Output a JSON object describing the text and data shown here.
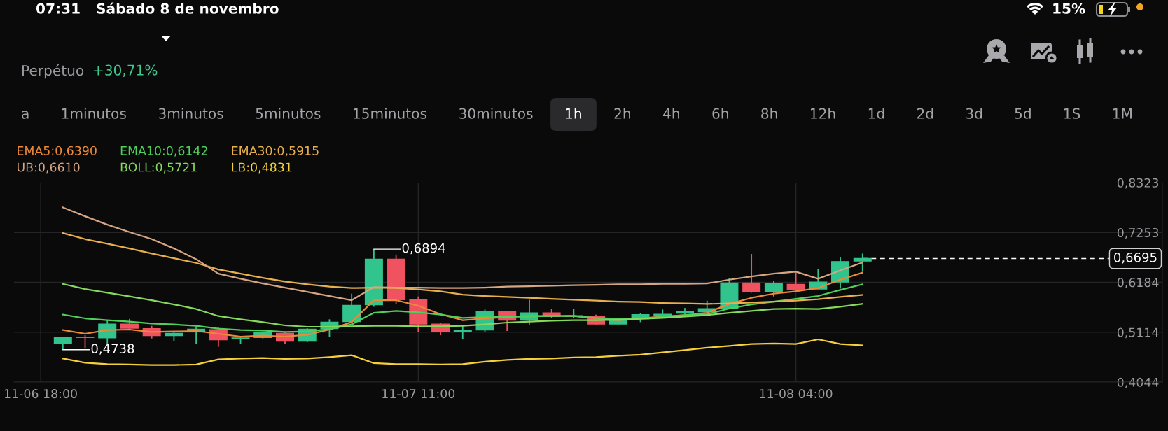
{
  "chart_data": {
    "type": "candlestick",
    "subtitle": "Perpétuo",
    "categories": [
      "11-06 18:00",
      null,
      null,
      null,
      null,
      null,
      null,
      null,
      null,
      null,
      null,
      null,
      null,
      null,
      null,
      null,
      null,
      "11-07 11:00",
      null,
      null,
      null,
      null,
      null,
      null,
      null,
      null,
      null,
      null,
      null,
      null,
      null,
      null,
      null,
      null,
      "11-08 04:00",
      null,
      null,
      null,
      null,
      null,
      null,
      null,
      null,
      null,
      null,
      null,
      null,
      null,
      null,
      null,
      null
    ],
    "ohlc": [
      null,
      [
        0.487,
        0.502,
        0.4738,
        0.5
      ],
      [
        0.501,
        0.505,
        0.476,
        0.5
      ],
      [
        0.499,
        0.537,
        0.487,
        0.529
      ],
      [
        0.529,
        0.54,
        0.518,
        0.52
      ],
      [
        0.519,
        0.525,
        0.498,
        0.504
      ],
      [
        0.504,
        0.514,
        0.493,
        0.509
      ],
      [
        0.512,
        0.524,
        0.486,
        0.518
      ],
      [
        0.517,
        0.523,
        0.48,
        0.495
      ],
      [
        0.497,
        0.503,
        0.486,
        0.499
      ],
      [
        0.5,
        0.513,
        0.498,
        0.51
      ],
      [
        0.509,
        0.512,
        0.487,
        0.492
      ],
      [
        0.492,
        0.52,
        0.49,
        0.518
      ],
      [
        0.519,
        0.539,
        0.501,
        0.533
      ],
      [
        0.534,
        0.594,
        0.53,
        0.569
      ],
      [
        0.57,
        0.6894,
        0.566,
        0.668
      ],
      [
        0.668,
        0.678,
        0.571,
        0.581
      ],
      [
        0.581,
        0.588,
        0.511,
        0.529
      ],
      [
        0.529,
        0.532,
        0.505,
        0.513
      ],
      [
        0.513,
        0.526,
        0.497,
        0.516
      ],
      [
        0.516,
        0.56,
        0.511,
        0.556
      ],
      [
        0.556,
        0.556,
        0.514,
        0.537
      ],
      [
        0.537,
        0.581,
        0.528,
        0.553
      ],
      [
        0.553,
        0.561,
        0.542,
        0.545
      ],
      [
        0.545,
        0.562,
        0.541,
        0.547
      ],
      [
        0.546,
        0.549,
        0.528,
        0.529
      ],
      [
        0.529,
        0.542,
        0.528,
        0.541
      ],
      [
        0.54,
        0.553,
        0.533,
        0.549
      ],
      [
        0.548,
        0.56,
        0.544,
        0.55
      ],
      [
        0.552,
        0.563,
        0.549,
        0.555
      ],
      [
        0.555,
        0.579,
        0.553,
        0.562
      ],
      [
        0.562,
        0.628,
        0.561,
        0.617
      ],
      [
        0.617,
        0.679,
        0.596,
        0.598
      ],
      [
        0.599,
        0.621,
        0.588,
        0.615
      ],
      [
        0.614,
        0.639,
        0.599,
        0.602
      ],
      [
        0.604,
        0.647,
        0.604,
        0.619
      ],
      [
        0.619,
        0.672,
        0.605,
        0.663
      ],
      [
        0.664,
        0.68,
        0.641,
        0.6695
      ],
      null,
      null,
      null,
      null,
      null,
      null,
      null,
      null,
      null,
      null,
      null,
      null,
      null
    ],
    "colors": [
      null,
      "#31c48d",
      "#f0525f",
      "#31c48d",
      "#f0525f",
      "#f0525f",
      "#31c48d",
      "#31c48d",
      "#f0525f",
      "#31c48d",
      "#31c48d",
      "#f0525f",
      "#31c48d",
      "#31c48d",
      "#31c48d",
      "#31c48d",
      "#f0525f",
      "#f0525f",
      "#f0525f",
      "#31c48d",
      "#31c48d",
      "#f0525f",
      "#31c48d",
      "#f0525f",
      "#31c48d",
      "#f0525f",
      "#31c48d",
      "#31c48d",
      "#31c48d",
      "#31c48d",
      "#31c48d",
      "#31c48d",
      "#f0525f",
      "#31c48d",
      "#f0525f",
      "#31c48d",
      "#31c48d",
      "#31c48d",
      null,
      null,
      null,
      null,
      null,
      null,
      null,
      null,
      null,
      null,
      null,
      null,
      null
    ],
    "series": [
      {
        "type": "line",
        "name": "EMA5:0,6390",
        "color": "#ec8a3a",
        "values": [
          null,
          0.516,
          0.508,
          0.516,
          0.517,
          0.512,
          0.513,
          0.514,
          0.508,
          0.502,
          0.504,
          0.502,
          0.506,
          0.517,
          0.533,
          0.58,
          0.58,
          0.568,
          0.55,
          0.537,
          0.541,
          0.544,
          0.546,
          0.546,
          0.546,
          0.541,
          0.537,
          0.541,
          0.545,
          0.548,
          0.553,
          0.572,
          0.585,
          0.594,
          0.599,
          0.606,
          0.624,
          0.639,
          null,
          null,
          null,
          null,
          null,
          null,
          null,
          null,
          null,
          null,
          null,
          null,
          null
        ]
      },
      {
        "type": "line",
        "name": "EMA10:0,6142",
        "color": "#4fd05a",
        "values": [
          null,
          0.549,
          0.541,
          0.537,
          0.534,
          0.53,
          0.528,
          0.525,
          0.519,
          0.516,
          0.515,
          0.512,
          0.513,
          0.518,
          0.528,
          0.553,
          0.557,
          0.554,
          0.549,
          0.542,
          0.544,
          0.545,
          0.545,
          0.546,
          0.546,
          0.542,
          0.54,
          0.541,
          0.544,
          0.548,
          0.55,
          0.562,
          0.571,
          0.577,
          0.583,
          0.589,
          0.602,
          0.6142,
          null,
          null,
          null,
          null,
          null,
          null,
          null,
          null,
          null,
          null,
          null,
          null,
          null
        ]
      },
      {
        "type": "line",
        "name": "EMA30:0,5915",
        "color": "#e8b04c",
        "values": [
          null,
          0.724,
          0.711,
          0.701,
          0.691,
          0.68,
          0.67,
          0.66,
          0.646,
          0.637,
          0.628,
          0.62,
          0.614,
          0.609,
          0.606,
          0.607,
          0.606,
          0.603,
          0.599,
          0.592,
          0.589,
          0.587,
          0.585,
          0.583,
          0.581,
          0.579,
          0.577,
          0.576,
          0.574,
          0.573,
          0.572,
          0.573,
          0.575,
          0.577,
          0.579,
          0.582,
          0.587,
          0.5915,
          null,
          null,
          null,
          null,
          null,
          null,
          null,
          null,
          null,
          null,
          null,
          null,
          null
        ]
      },
      {
        "type": "line",
        "name": "UB:0,6610",
        "color": "#d6a582",
        "values": [
          null,
          0.779,
          0.76,
          0.742,
          0.726,
          0.711,
          0.691,
          0.668,
          0.637,
          0.626,
          0.616,
          0.607,
          0.598,
          0.589,
          0.58,
          0.608,
          0.607,
          0.607,
          0.606,
          0.606,
          0.607,
          0.609,
          0.61,
          0.611,
          0.612,
          0.613,
          0.614,
          0.614,
          0.615,
          0.615,
          0.616,
          0.624,
          0.631,
          0.637,
          0.641,
          0.626,
          0.644,
          0.661,
          null,
          null,
          null,
          null,
          null,
          null,
          null,
          null,
          null,
          null,
          null,
          null,
          null
        ]
      },
      {
        "type": "line",
        "name": "BOLL:0,5721",
        "color": "#86d95a",
        "values": [
          null,
          0.615,
          0.604,
          0.596,
          0.588,
          0.58,
          0.571,
          0.561,
          0.546,
          0.539,
          0.533,
          0.526,
          0.523,
          0.523,
          0.524,
          0.525,
          0.525,
          0.524,
          0.524,
          0.525,
          0.528,
          0.532,
          0.534,
          0.536,
          0.537,
          0.537,
          0.538,
          0.54,
          0.542,
          0.545,
          0.548,
          0.553,
          0.557,
          0.561,
          0.562,
          0.561,
          0.566,
          0.5721,
          null,
          null,
          null,
          null,
          null,
          null,
          null,
          null,
          null,
          null,
          null,
          null,
          null
        ]
      },
      {
        "type": "line",
        "name": "LB:0,4831",
        "color": "#f5d03a",
        "values": [
          null,
          0.455,
          0.446,
          0.443,
          0.442,
          0.441,
          0.441,
          0.442,
          0.453,
          0.455,
          0.456,
          0.454,
          0.455,
          0.458,
          0.462,
          0.445,
          0.443,
          0.443,
          0.442,
          0.443,
          0.448,
          0.452,
          0.454,
          0.455,
          0.457,
          0.458,
          0.461,
          0.463,
          0.468,
          0.473,
          0.478,
          0.482,
          0.486,
          0.487,
          0.486,
          0.496,
          0.486,
          0.4831,
          null,
          null,
          null,
          null,
          null,
          null,
          null,
          null,
          null,
          null,
          null,
          null,
          null
        ]
      }
    ],
    "ylim": [
      0.4044,
      0.8323
    ],
    "yticks": [
      {
        "value": 0.4044,
        "label": "0,4044"
      },
      {
        "value": 0.5114,
        "label": "0,5114"
      },
      {
        "value": 0.6184,
        "label": "0,6184"
      },
      {
        "value": 0.7253,
        "label": "0,7253"
      },
      {
        "value": 0.8323,
        "label": "0,8323"
      }
    ],
    "grid": true,
    "legend": "top left",
    "ref_lines": [
      {
        "axis": "y",
        "value": 0.6695,
        "label": "0,6695",
        "color": "#ffffff",
        "line_style": "dashed"
      }
    ],
    "annotations": [
      "07:31",
      "Sábado 8 de novembro",
      "15%",
      "+30,71%",
      "a",
      "1minutos",
      "3minutos",
      "5minutos",
      "15minutos",
      "30minutos",
      "1h",
      "2h",
      "4h",
      "6h",
      "8h",
      "12h",
      "1d",
      "2d",
      "3d",
      "5d",
      "1S",
      "1M",
      "0,6894",
      "0,4738"
    ]
  }
}
